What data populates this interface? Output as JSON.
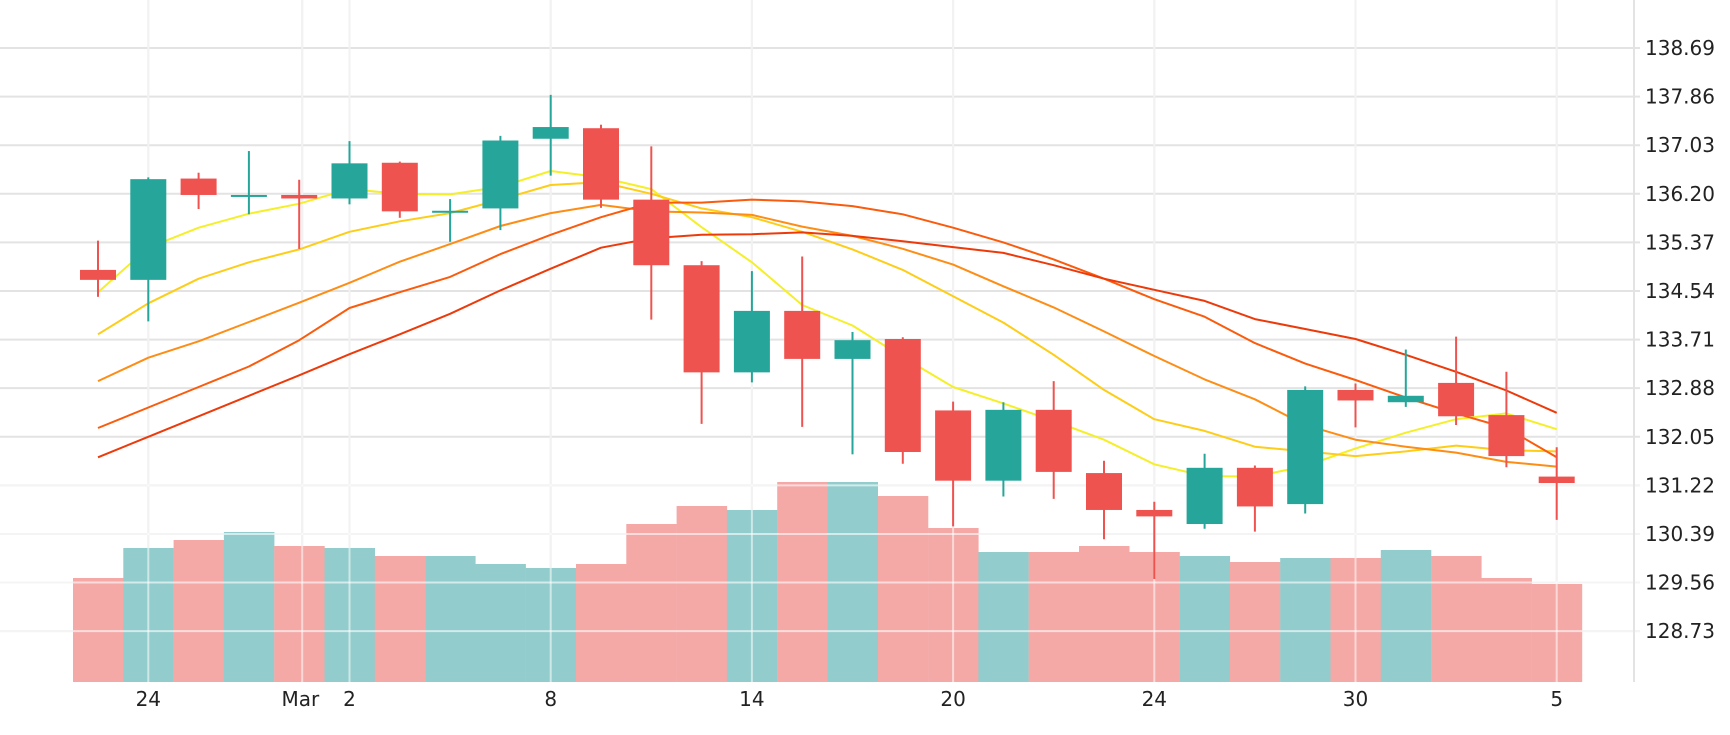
{
  "chart_data": {
    "type": "candlestick",
    "y_axis": {
      "position": "right",
      "ticks": [
        138.69,
        137.86,
        137.03,
        136.2,
        135.37,
        134.54,
        133.71,
        132.88,
        132.05,
        131.22,
        130.39,
        129.56,
        128.73
      ],
      "tick_labels": [
        "138.69",
        "137.86",
        "137.03",
        "136.20",
        "135.37",
        "134.54",
        "133.71",
        "132.88",
        "132.05",
        "131.22",
        "130.39",
        "129.56",
        "128.73"
      ]
    },
    "x_axis": {
      "tick_labels": [
        {
          "index": 1,
          "label": "24"
        },
        {
          "index": 4,
          "label": "Mar"
        },
        {
          "index": 5,
          "label": "2"
        },
        {
          "index": 9,
          "label": "8"
        },
        {
          "index": 13,
          "label": "14"
        },
        {
          "index": 17,
          "label": "20"
        },
        {
          "index": 21,
          "label": "24"
        },
        {
          "index": 25,
          "label": "30"
        },
        {
          "index": 29,
          "label": "5"
        }
      ]
    },
    "grid": true,
    "up_color": "#26a69a",
    "down_color": "#ef5350",
    "volume_up_color": "#92cccc",
    "volume_down_color": "#f4a9a7",
    "candles": [
      {
        "open": 134.9,
        "high": 135.4,
        "low": 134.44,
        "close": 134.73
      },
      {
        "open": 134.73,
        "high": 136.48,
        "low": 134.02,
        "close": 136.45
      },
      {
        "open": 136.46,
        "high": 136.56,
        "low": 135.94,
        "close": 136.18
      },
      {
        "open": 136.18,
        "high": 136.93,
        "low": 135.85,
        "close": 136.18
      },
      {
        "open": 136.18,
        "high": 136.44,
        "low": 135.26,
        "close": 136.12
      },
      {
        "open": 136.12,
        "high": 137.1,
        "low": 136.02,
        "close": 136.72
      },
      {
        "open": 136.73,
        "high": 136.75,
        "low": 135.79,
        "close": 135.9
      },
      {
        "open": 135.9,
        "high": 136.11,
        "low": 135.38,
        "close": 135.91
      },
      {
        "open": 135.95,
        "high": 137.19,
        "low": 135.58,
        "close": 137.11
      },
      {
        "open": 137.14,
        "high": 137.89,
        "low": 136.51,
        "close": 137.34
      },
      {
        "open": 137.32,
        "high": 137.38,
        "low": 135.96,
        "close": 136.1
      },
      {
        "open": 136.1,
        "high": 137.01,
        "low": 134.05,
        "close": 134.98
      },
      {
        "open": 134.98,
        "high": 135.05,
        "low": 132.27,
        "close": 133.15
      },
      {
        "open": 133.15,
        "high": 134.88,
        "low": 132.98,
        "close": 134.2
      },
      {
        "open": 134.2,
        "high": 135.13,
        "low": 132.22,
        "close": 133.38
      },
      {
        "open": 133.38,
        "high": 133.84,
        "low": 131.75,
        "close": 133.7
      },
      {
        "open": 133.72,
        "high": 133.75,
        "low": 131.59,
        "close": 131.79
      },
      {
        "open": 132.5,
        "high": 132.65,
        "low": 130.52,
        "close": 131.3
      },
      {
        "open": 131.3,
        "high": 132.64,
        "low": 131.03,
        "close": 132.51
      },
      {
        "open": 132.51,
        "high": 133.0,
        "low": 130.99,
        "close": 131.45
      },
      {
        "open": 131.43,
        "high": 131.64,
        "low": 130.3,
        "close": 130.8
      },
      {
        "open": 130.8,
        "high": 130.94,
        "low": 129.62,
        "close": 130.69
      },
      {
        "open": 130.56,
        "high": 131.76,
        "low": 130.48,
        "close": 131.52
      },
      {
        "open": 131.52,
        "high": 131.56,
        "low": 130.43,
        "close": 130.86
      },
      {
        "open": 130.9,
        "high": 132.91,
        "low": 130.74,
        "close": 132.85
      },
      {
        "open": 132.85,
        "high": 132.96,
        "low": 132.21,
        "close": 132.67
      },
      {
        "open": 132.64,
        "high": 133.54,
        "low": 132.56,
        "close": 132.75
      },
      {
        "open": 132.97,
        "high": 133.76,
        "low": 132.25,
        "close": 132.4
      },
      {
        "open": 132.42,
        "high": 133.16,
        "low": 131.53,
        "close": 131.72
      },
      {
        "open": 131.37,
        "high": 131.87,
        "low": 130.63,
        "close": 131.26
      }
    ],
    "volumes": [
      0.52,
      0.67,
      0.71,
      0.75,
      0.68,
      0.67,
      0.63,
      0.63,
      0.59,
      0.57,
      0.59,
      0.79,
      0.88,
      0.86,
      1.0,
      1.0,
      0.93,
      0.77,
      0.65,
      0.65,
      0.68,
      0.65,
      0.63,
      0.6,
      0.62,
      0.62,
      0.66,
      0.63,
      0.52,
      0.49
    ],
    "moving_averages": [
      {
        "color": "#f5ef29",
        "values": [
          134.52,
          135.28,
          135.62,
          135.86,
          136.03,
          136.28,
          136.2,
          136.19,
          136.32,
          136.59,
          136.48,
          136.28,
          135.63,
          135.03,
          134.3,
          133.95,
          133.41,
          132.9,
          132.62,
          132.32,
          132.0,
          131.58,
          131.38,
          131.37,
          131.55,
          131.85,
          132.12,
          132.35,
          132.45,
          132.18
        ]
      },
      {
        "color": "#fdcd17",
        "values": [
          133.8,
          134.33,
          134.75,
          135.03,
          135.25,
          135.55,
          135.73,
          135.87,
          136.1,
          136.35,
          136.4,
          136.2,
          135.95,
          135.8,
          135.55,
          135.25,
          134.9,
          134.45,
          134.0,
          133.45,
          132.85,
          132.35,
          132.15,
          131.88,
          131.8,
          131.72,
          131.8,
          131.9,
          131.82,
          131.8
        ]
      },
      {
        "color": "#fd8d15",
        "values": [
          133.0,
          133.4,
          133.68,
          134.01,
          134.34,
          134.68,
          135.04,
          135.34,
          135.65,
          135.87,
          136.01,
          135.9,
          135.88,
          135.84,
          135.64,
          135.48,
          135.26,
          134.99,
          134.62,
          134.26,
          133.85,
          133.43,
          133.03,
          132.69,
          132.25,
          132.0,
          131.88,
          131.78,
          131.62,
          131.54
        ]
      },
      {
        "color": "#fa5b0c",
        "values": [
          132.2,
          132.55,
          132.9,
          133.25,
          133.7,
          134.25,
          134.52,
          134.78,
          135.17,
          135.5,
          135.8,
          136.05,
          136.05,
          136.1,
          136.07,
          135.99,
          135.85,
          135.62,
          135.37,
          135.08,
          134.75,
          134.4,
          134.1,
          133.65,
          133.3,
          133.02,
          132.72,
          132.45,
          132.2,
          131.7
        ]
      },
      {
        "color": "#ec3a0a",
        "values": [
          131.7,
          132.05,
          132.4,
          132.75,
          133.1,
          133.46,
          133.8,
          134.15,
          134.55,
          134.92,
          135.28,
          135.44,
          135.5,
          135.51,
          135.54,
          135.48,
          135.39,
          135.29,
          135.19,
          134.98,
          134.75,
          134.56,
          134.37,
          134.06,
          133.89,
          133.72,
          133.45,
          133.16,
          132.84,
          132.46
        ]
      }
    ]
  }
}
